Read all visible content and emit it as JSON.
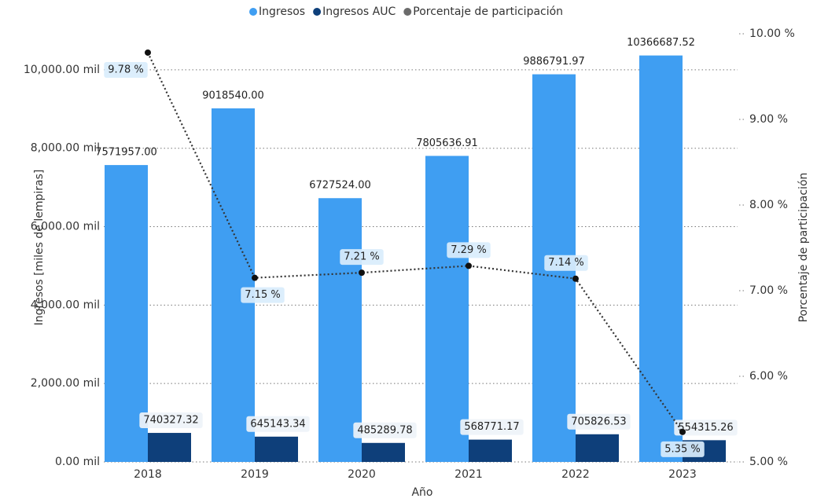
{
  "chart_data": {
    "type": "bar",
    "categories": [
      "2018",
      "2019",
      "2020",
      "2021",
      "2022",
      "2023"
    ],
    "x_label": "Año",
    "y_label": "Ingresos [miles de lempiras]",
    "y2_label": "Porcentaje de participación",
    "ylim": [
      0,
      10920000
    ],
    "yticks": [
      {
        "value": 0,
        "label": "0.00 mil"
      },
      {
        "value": 2000000,
        "label": "2,000.00 mil"
      },
      {
        "value": 4000000,
        "label": "4,000.00 mil"
      },
      {
        "value": 6000000,
        "label": "6,000.00 mil"
      },
      {
        "value": 8000000,
        "label": "8,000.00 mil"
      },
      {
        "value": 10000000,
        "label": "10,000.00 mil"
      }
    ],
    "y2lim": [
      5,
      10
    ],
    "y2ticks": [
      {
        "value": 5,
        "label": "5.00 %"
      },
      {
        "value": 6,
        "label": "6.00 %"
      },
      {
        "value": 7,
        "label": "7.00 %"
      },
      {
        "value": 8,
        "label": "8.00 %"
      },
      {
        "value": 9,
        "label": "9.00 %"
      },
      {
        "value": 10,
        "label": "10.00 %"
      }
    ],
    "grid": true,
    "legend": "top",
    "series": [
      {
        "name": "Ingresos",
        "color": "#3f9ef2",
        "values": [
          7571957.0,
          9018540.0,
          6727524.0,
          7805636.91,
          9886791.97,
          10366687.52
        ],
        "value_labels": [
          "7571957.00",
          "9018540.00",
          "6727524.00",
          "7805636.91",
          "9886791.97",
          "10366687.52"
        ]
      },
      {
        "name": "Ingresos AUC",
        "color": "#0e3f7a",
        "values": [
          740327.32,
          645143.34,
          485289.78,
          568771.17,
          705826.53,
          554315.26
        ],
        "value_labels": [
          "740327.32",
          "645143.34",
          "485289.78",
          "568771.17",
          "705826.53",
          "554315.26"
        ]
      },
      {
        "name": "Porcentaje de participación",
        "color": "#6b6b6b",
        "type": "line",
        "axis": "y2",
        "values": [
          9.78,
          7.15,
          7.21,
          7.29,
          7.14,
          5.35
        ],
        "value_labels": [
          "9.78 %",
          "7.15 %",
          "7.21 %",
          "7.29 %",
          "7.14 %",
          "5.35 %"
        ]
      }
    ]
  }
}
